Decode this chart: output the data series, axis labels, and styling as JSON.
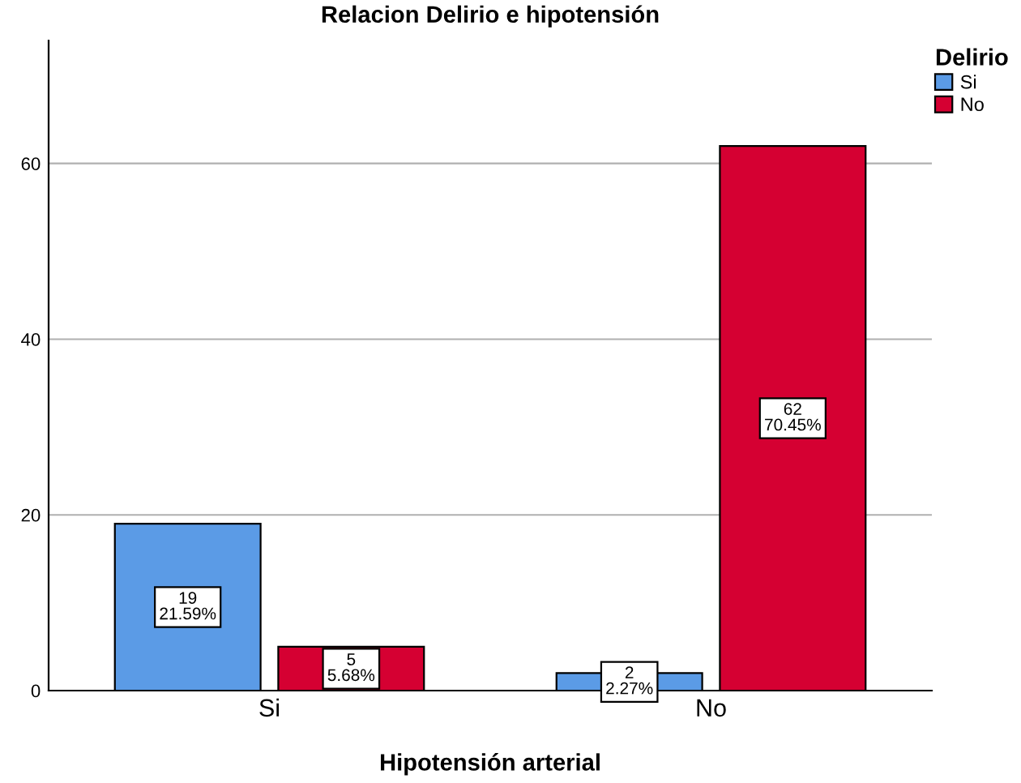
{
  "chart_data": {
    "type": "bar",
    "title": "Relacion Delirio e hipotensión",
    "xlabel": "Hipotensión arterial",
    "legend_title": "Delirio",
    "categories": [
      "Si",
      "No"
    ],
    "series": [
      {
        "name": "Si",
        "color": "#5b9be6",
        "values": [
          19,
          2
        ],
        "value_labels": [
          "19\n21.59%",
          "2\n2.27%"
        ]
      },
      {
        "name": "No",
        "color": "#d50032",
        "values": [
          5,
          62
        ],
        "value_labels": [
          "5\n5.68%",
          "62\n70.45%"
        ]
      }
    ],
    "ylim": [
      0,
      74
    ],
    "yticks": [
      0,
      20,
      40,
      60
    ],
    "grid": "y",
    "legend": "top right"
  }
}
